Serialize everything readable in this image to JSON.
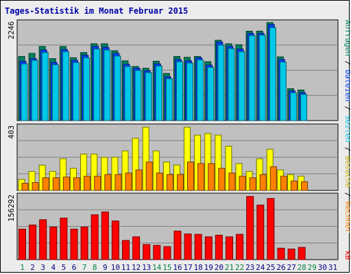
{
  "chart_data": {
    "type": "bar",
    "title": "Tages-Statistik im Monat Februar 2015",
    "days": [
      "1",
      "2",
      "3",
      "4",
      "5",
      "6",
      "7",
      "8",
      "9",
      "10",
      "11",
      "12",
      "13",
      "14",
      "15",
      "16",
      "17",
      "18",
      "19",
      "20",
      "21",
      "22",
      "23",
      "24",
      "25",
      "26",
      "27",
      "28",
      "29",
      "30",
      "31"
    ],
    "weekend_days": [
      1,
      7,
      8,
      14,
      15,
      21,
      22,
      28,
      29
    ],
    "panels": [
      {
        "id": "top",
        "ymax_label": "2246",
        "ymax": 2246,
        "series": [
          {
            "name": "Anfragen",
            "color": "#008060",
            "values": [
              1470,
              1540,
              1700,
              1420,
              1700,
              1440,
              1560,
              1760,
              1760,
              1600,
              1370,
              1240,
              1200,
              1360,
              1080,
              1470,
              1450,
              1470,
              1350,
              1840,
              1760,
              1740,
              2050,
              2050,
              2246,
              1460,
              730,
              700,
              null,
              null,
              null
            ]
          },
          {
            "name": "Dateien",
            "color": "#0040ff",
            "values": [
              1360,
              1420,
              1620,
              1330,
              1630,
              1380,
              1500,
              1700,
              1680,
              1540,
              1290,
              1200,
              1140,
              1300,
              1000,
              1400,
              1370,
              1440,
              1270,
              1800,
              1700,
              1640,
              2000,
              2000,
              2200,
              1400,
              680,
              640,
              null,
              null,
              null
            ]
          },
          {
            "name": "Seiten",
            "color": "#00c8e8",
            "values": [
              1300,
              1380,
              1560,
              1280,
              1580,
              1330,
              1440,
              1640,
              1620,
              1480,
              1240,
              1150,
              1100,
              1250,
              960,
              1350,
              1320,
              1390,
              1220,
              1730,
              1650,
              1580,
              1950,
              1960,
              2130,
              1340,
              640,
              600,
              null,
              null,
              null
            ]
          }
        ]
      },
      {
        "id": "middle",
        "ymax_label": "403",
        "ymax": 403,
        "series": [
          {
            "name": "Besuche",
            "color": "#ffff00",
            "values": [
              70,
              120,
              160,
              120,
              200,
              140,
              230,
              230,
              210,
              210,
              250,
              330,
              400,
              250,
              180,
              160,
              400,
              350,
              360,
              350,
              280,
              170,
              120,
              200,
              260,
              130,
              100,
              90,
              null,
              null,
              null
            ]
          },
          {
            "name": "Rechner",
            "color": "#ff8000",
            "values": [
              45,
              50,
              80,
              80,
              85,
              80,
              90,
              90,
              100,
              100,
              110,
              130,
              180,
              110,
              100,
              100,
              180,
              170,
              170,
              140,
              110,
              90,
              80,
              100,
              150,
              90,
              60,
              55,
              null,
              null,
              null
            ]
          }
        ]
      },
      {
        "id": "bottom",
        "ymax_label": "156292",
        "ymax": 156292,
        "series": [
          {
            "name": "kB",
            "color": "#ff0000",
            "values": [
              75000,
              85000,
              98000,
              80000,
              102000,
              75000,
              80000,
              110000,
              117000,
              95000,
              47000,
              56000,
              37000,
              35000,
              32000,
              70000,
              63000,
              62000,
              56000,
              60000,
              56000,
              62000,
              155000,
              134000,
              150000,
              28000,
              26000,
              30000,
              null,
              null,
              null
            ]
          }
        ]
      }
    ],
    "right_labels": {
      "top": [
        {
          "text": "Anfragen",
          "color": "#008060"
        },
        {
          "text": " / ",
          "color": "#000000"
        },
        {
          "text": "Dateien",
          "color": "#0040ff"
        },
        {
          "text": " / ",
          "color": "#000000"
        },
        {
          "text": "Seiten",
          "color": "#00c8e8"
        },
        {
          "text": " / ",
          "color": "#000000"
        },
        {
          "text": "Besuche",
          "color": "#c8b400"
        },
        {
          "text": " / ",
          "color": "#000000"
        },
        {
          "text": "Rechner",
          "color": "#ff8000"
        }
      ],
      "bottom": [
        {
          "text": "kB",
          "color": "#ff0000"
        }
      ]
    },
    "colors": {
      "plot_bg": "#c0c0c0",
      "grid": "#808080",
      "weekday_tick": "#000080",
      "weekend_tick": "#008040"
    }
  }
}
